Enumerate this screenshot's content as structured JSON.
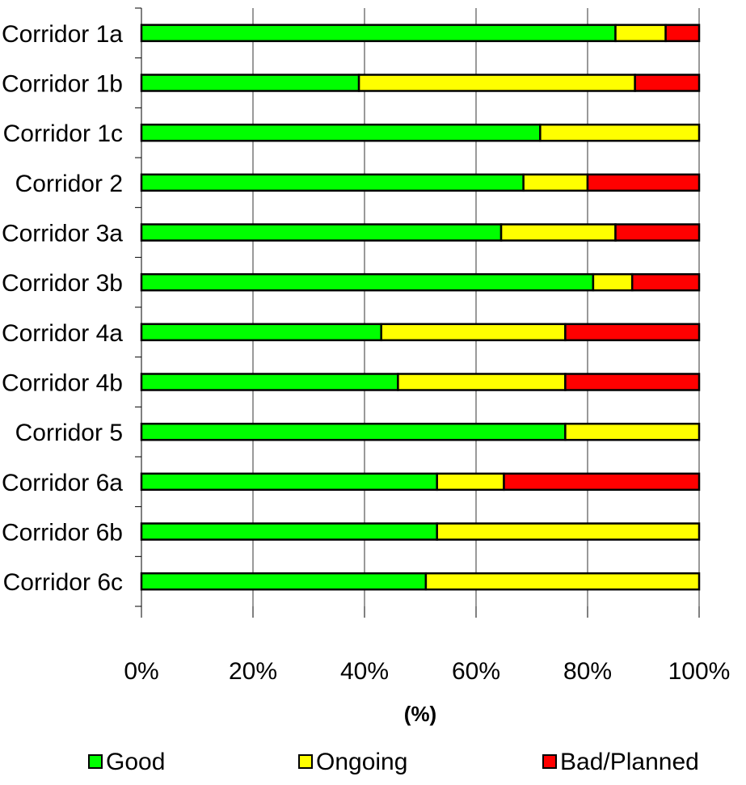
{
  "chart_data": {
    "type": "bar",
    "orientation": "horizontal",
    "stacked": true,
    "categories": [
      "Corridor 1a",
      "Corridor 1b",
      "Corridor 1c",
      "Corridor 2",
      "Corridor 3a",
      "Corridor 3b",
      "Corridor 4a",
      "Corridor 4b",
      "Corridor 5",
      "Corridor 6a",
      "Corridor 6b",
      "Corridor 6c"
    ],
    "series": [
      {
        "name": "Good",
        "color": "#00ff00",
        "values": [
          85,
          39,
          71.5,
          68.5,
          64.5,
          81,
          43,
          46,
          76,
          53,
          53,
          51
        ]
      },
      {
        "name": "Ongoing",
        "color": "#ffff00",
        "values": [
          9,
          49.5,
          28.5,
          11.5,
          20.5,
          7,
          33,
          30,
          24,
          12,
          47,
          49
        ]
      },
      {
        "name": "Bad/Planned",
        "color": "#ff0000",
        "values": [
          6,
          11.5,
          0,
          20,
          15,
          12,
          24,
          24,
          0,
          35,
          0,
          0
        ]
      }
    ],
    "xlim": [
      0,
      100
    ],
    "xticks": [
      "0%",
      "20%",
      "40%",
      "60%",
      "80%",
      "100%"
    ],
    "xlabel": "(%)",
    "ylabel": "",
    "grid": true,
    "legend_position": "bottom"
  }
}
